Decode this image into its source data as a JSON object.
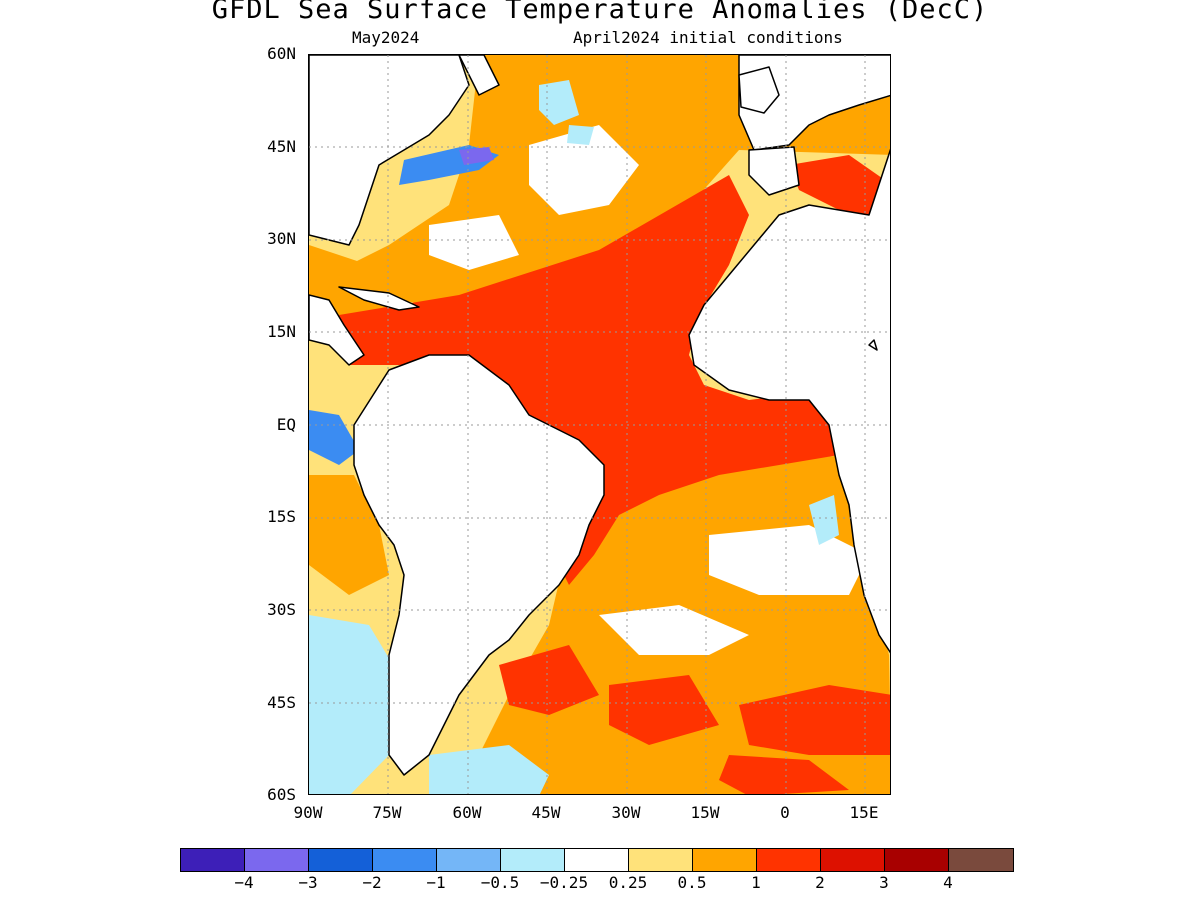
{
  "title": "GFDL Sea Surface Temperature Anomalies (DecC)",
  "subtitle_left": "May2024",
  "subtitle_right": "April2024 initial conditions",
  "map": {
    "region": "Atlantic Ocean",
    "lat_range": [
      -60,
      60
    ],
    "lon_range": [
      -90,
      20
    ],
    "lat_labels": [
      "60N",
      "45N",
      "30N",
      "15N",
      "EQ",
      "15S",
      "30S",
      "45S",
      "60S"
    ],
    "lon_labels": [
      "90W",
      "75W",
      "60W",
      "45W",
      "30W",
      "15W",
      "0",
      "15E"
    ],
    "gridlines": "dotted",
    "coastlines": true
  },
  "colorbar": {
    "colors": [
      "#3d1fb8",
      "#7b68ee",
      "#1460d8",
      "#3b8cf2",
      "#74b6f7",
      "#b3ecfa",
      "#ffffff",
      "#ffe27a",
      "#ffa500",
      "#ff3300",
      "#dd1100",
      "#a80000",
      "#7a4a3d"
    ],
    "labels": [
      "−4",
      "−3",
      "−2",
      "−1",
      "−0.5",
      "−0.25",
      "0.25",
      "0.5",
      "1",
      "2",
      "3",
      "4"
    ]
  }
}
